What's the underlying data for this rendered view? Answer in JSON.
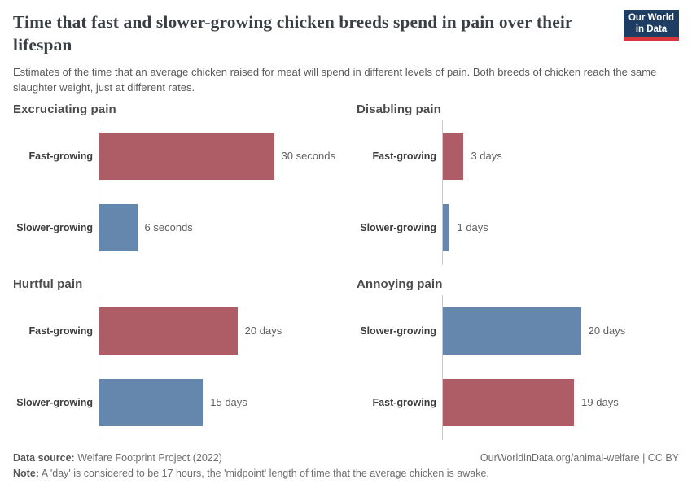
{
  "header": {
    "title": "Time that fast and slower-growing chicken breeds spend in pain over their lifespan",
    "subtitle": "Estimates of the time that an average chicken raised for meat will spend in different levels of pain. Both breeds of chicken reach the same slaughter weight, just at different rates.",
    "logo": {
      "line1": "Our World",
      "line2": "in Data"
    }
  },
  "colors": {
    "fast_growing_bar": "#ae5c66",
    "slower_growing_bar": "#6587ae",
    "logo_background": "#1d3d63",
    "logo_underline": "#d8353c",
    "axis_line": "#c8c8c8"
  },
  "chart_data": {
    "type": "bar",
    "orientation": "horizontal",
    "layout": "2x2 small multiples",
    "series_colors": {
      "fast": "#ae5c66",
      "slow": "#6587ae"
    },
    "panels": [
      {
        "title": "Excruciating pain",
        "unit": "seconds",
        "xlim": [
          0,
          37.5
        ],
        "bars": [
          {
            "label": "Fast-growing",
            "value": 30,
            "value_label": "30 seconds",
            "series": "fast"
          },
          {
            "label": "Slower-growing",
            "value": 6,
            "value_label": "6 seconds",
            "series": "slow"
          }
        ]
      },
      {
        "title": "Disabling pain",
        "unit": "days",
        "xlim": [
          0,
          34.3
        ],
        "bars": [
          {
            "label": "Fast-growing",
            "value": 3,
            "value_label": "3 days",
            "series": "fast"
          },
          {
            "label": "Slower-growing",
            "value": 1,
            "value_label": "1 days",
            "series": "slow"
          }
        ]
      },
      {
        "title": "Hurtful pain",
        "unit": "days",
        "xlim": [
          0,
          34.3
        ],
        "bars": [
          {
            "label": "Fast-growing",
            "value": 20,
            "value_label": "20 days",
            "series": "fast"
          },
          {
            "label": "Slower-growing",
            "value": 15,
            "value_label": "15 days",
            "series": "slow"
          }
        ]
      },
      {
        "title": "Annoying pain",
        "unit": "days",
        "xlim": [
          0,
          34.3
        ],
        "bars": [
          {
            "label": "Slower-growing",
            "value": 20,
            "value_label": "20 days",
            "series": "slow"
          },
          {
            "label": "Fast-growing",
            "value": 19,
            "value_label": "19 days",
            "series": "fast"
          }
        ]
      }
    ]
  },
  "footer": {
    "data_source_label": "Data source:",
    "data_source": " Welfare Footprint Project (2022)",
    "attribution": "OurWorldinData.org/animal-welfare | CC BY",
    "note_label": "Note:",
    "note": " A 'day' is considered to be 17 hours, the 'midpoint' length of time that the average chicken is awake."
  }
}
